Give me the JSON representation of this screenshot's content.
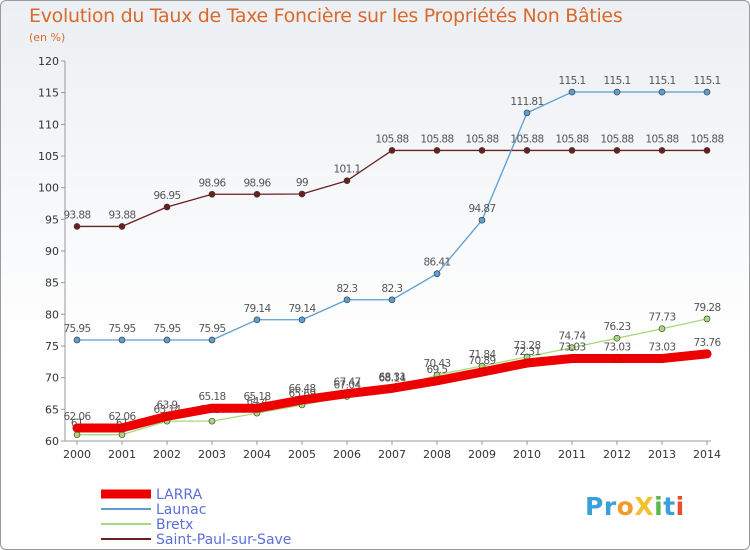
{
  "title": "Evolution du Taux de Taxe Foncière sur les Propriétés Non Bâties",
  "unit": "(en %)",
  "logo": {
    "text": "ProXiti",
    "letter_colors": [
      "#3aa0d8",
      "#3aa0d8",
      "#f29a2e",
      "#f2c12e",
      "#5bb84a",
      "#3aa0d8",
      "#e84d2e"
    ]
  },
  "chart_data": {
    "type": "line",
    "x": [
      "2000",
      "2001",
      "2002",
      "2003",
      "2004",
      "2005",
      "2006",
      "2007",
      "2008",
      "2009",
      "2010",
      "2011",
      "2012",
      "2013",
      "2014"
    ],
    "ylim": [
      60,
      120
    ],
    "yticks": [
      60,
      65,
      70,
      75,
      80,
      85,
      90,
      95,
      100,
      105,
      110,
      115,
      120
    ],
    "grid": false,
    "legend_position": "bottom-left",
    "series": [
      {
        "name": "Saint-Paul-sur-Save",
        "color": "#6b2020",
        "values": [
          93.88,
          93.88,
          96.95,
          98.96,
          98.96,
          99,
          101.1,
          105.88,
          105.88,
          105.88,
          105.88,
          105.88,
          105.88,
          105.88,
          105.88
        ],
        "labels": [
          "93.88",
          "93.88",
          "96.95",
          "98.96",
          "98.96",
          "99",
          "101.1",
          "105.88",
          "105.88",
          "105.88",
          "105.88",
          "105.88",
          "105.88",
          "105.88",
          "105.88"
        ]
      },
      {
        "name": "Launac",
        "color": "#5b9ecf",
        "values": [
          75.95,
          75.95,
          75.95,
          75.95,
          79.14,
          79.14,
          82.3,
          82.3,
          86.41,
          94.87,
          111.81,
          115.1,
          115.1,
          115.1,
          115.1
        ],
        "labels": [
          "75.95",
          "75.95",
          "75.95",
          "75.95",
          "79.14",
          "79.14",
          "82.3",
          "82.3",
          "86.41",
          "94.87",
          "111.81",
          "115.1",
          "115.1",
          "115.1",
          "115.1"
        ]
      },
      {
        "name": "Bretx",
        "color": "#a8d878",
        "values": [
          61,
          61,
          63.14,
          63.14,
          64.4,
          65.69,
          67.04,
          68.14,
          70.43,
          71.84,
          73.28,
          74.74,
          76.23,
          77.73,
          79.28
        ],
        "labels": [
          "61",
          "61",
          "63.14",
          "63.14",
          "64.4",
          "65.69",
          "67.04",
          "68.14",
          "70.43",
          "71.84",
          "73.28",
          "74.74",
          "76.23",
          "77.73",
          "79.28"
        ]
      },
      {
        "name": "LARRA",
        "color": "#ee0000",
        "values": [
          62.06,
          62.06,
          63.9,
          65.18,
          65.18,
          66.48,
          67.47,
          68.31,
          69.5,
          70.89,
          72.31,
          73.03,
          73.03,
          73.03,
          73.76
        ],
        "labels": [
          "62.06",
          "62.06",
          "63.9",
          "65.18",
          "65.18",
          "66.48",
          "67.47",
          "68.31",
          "69.5",
          "70.89",
          "72.31",
          "73.03",
          "73.03",
          "73.03",
          "73.76"
        ]
      }
    ],
    "legend_order": [
      "LARRA",
      "Launac",
      "Bretx",
      "Saint-Paul-sur-Save"
    ]
  }
}
